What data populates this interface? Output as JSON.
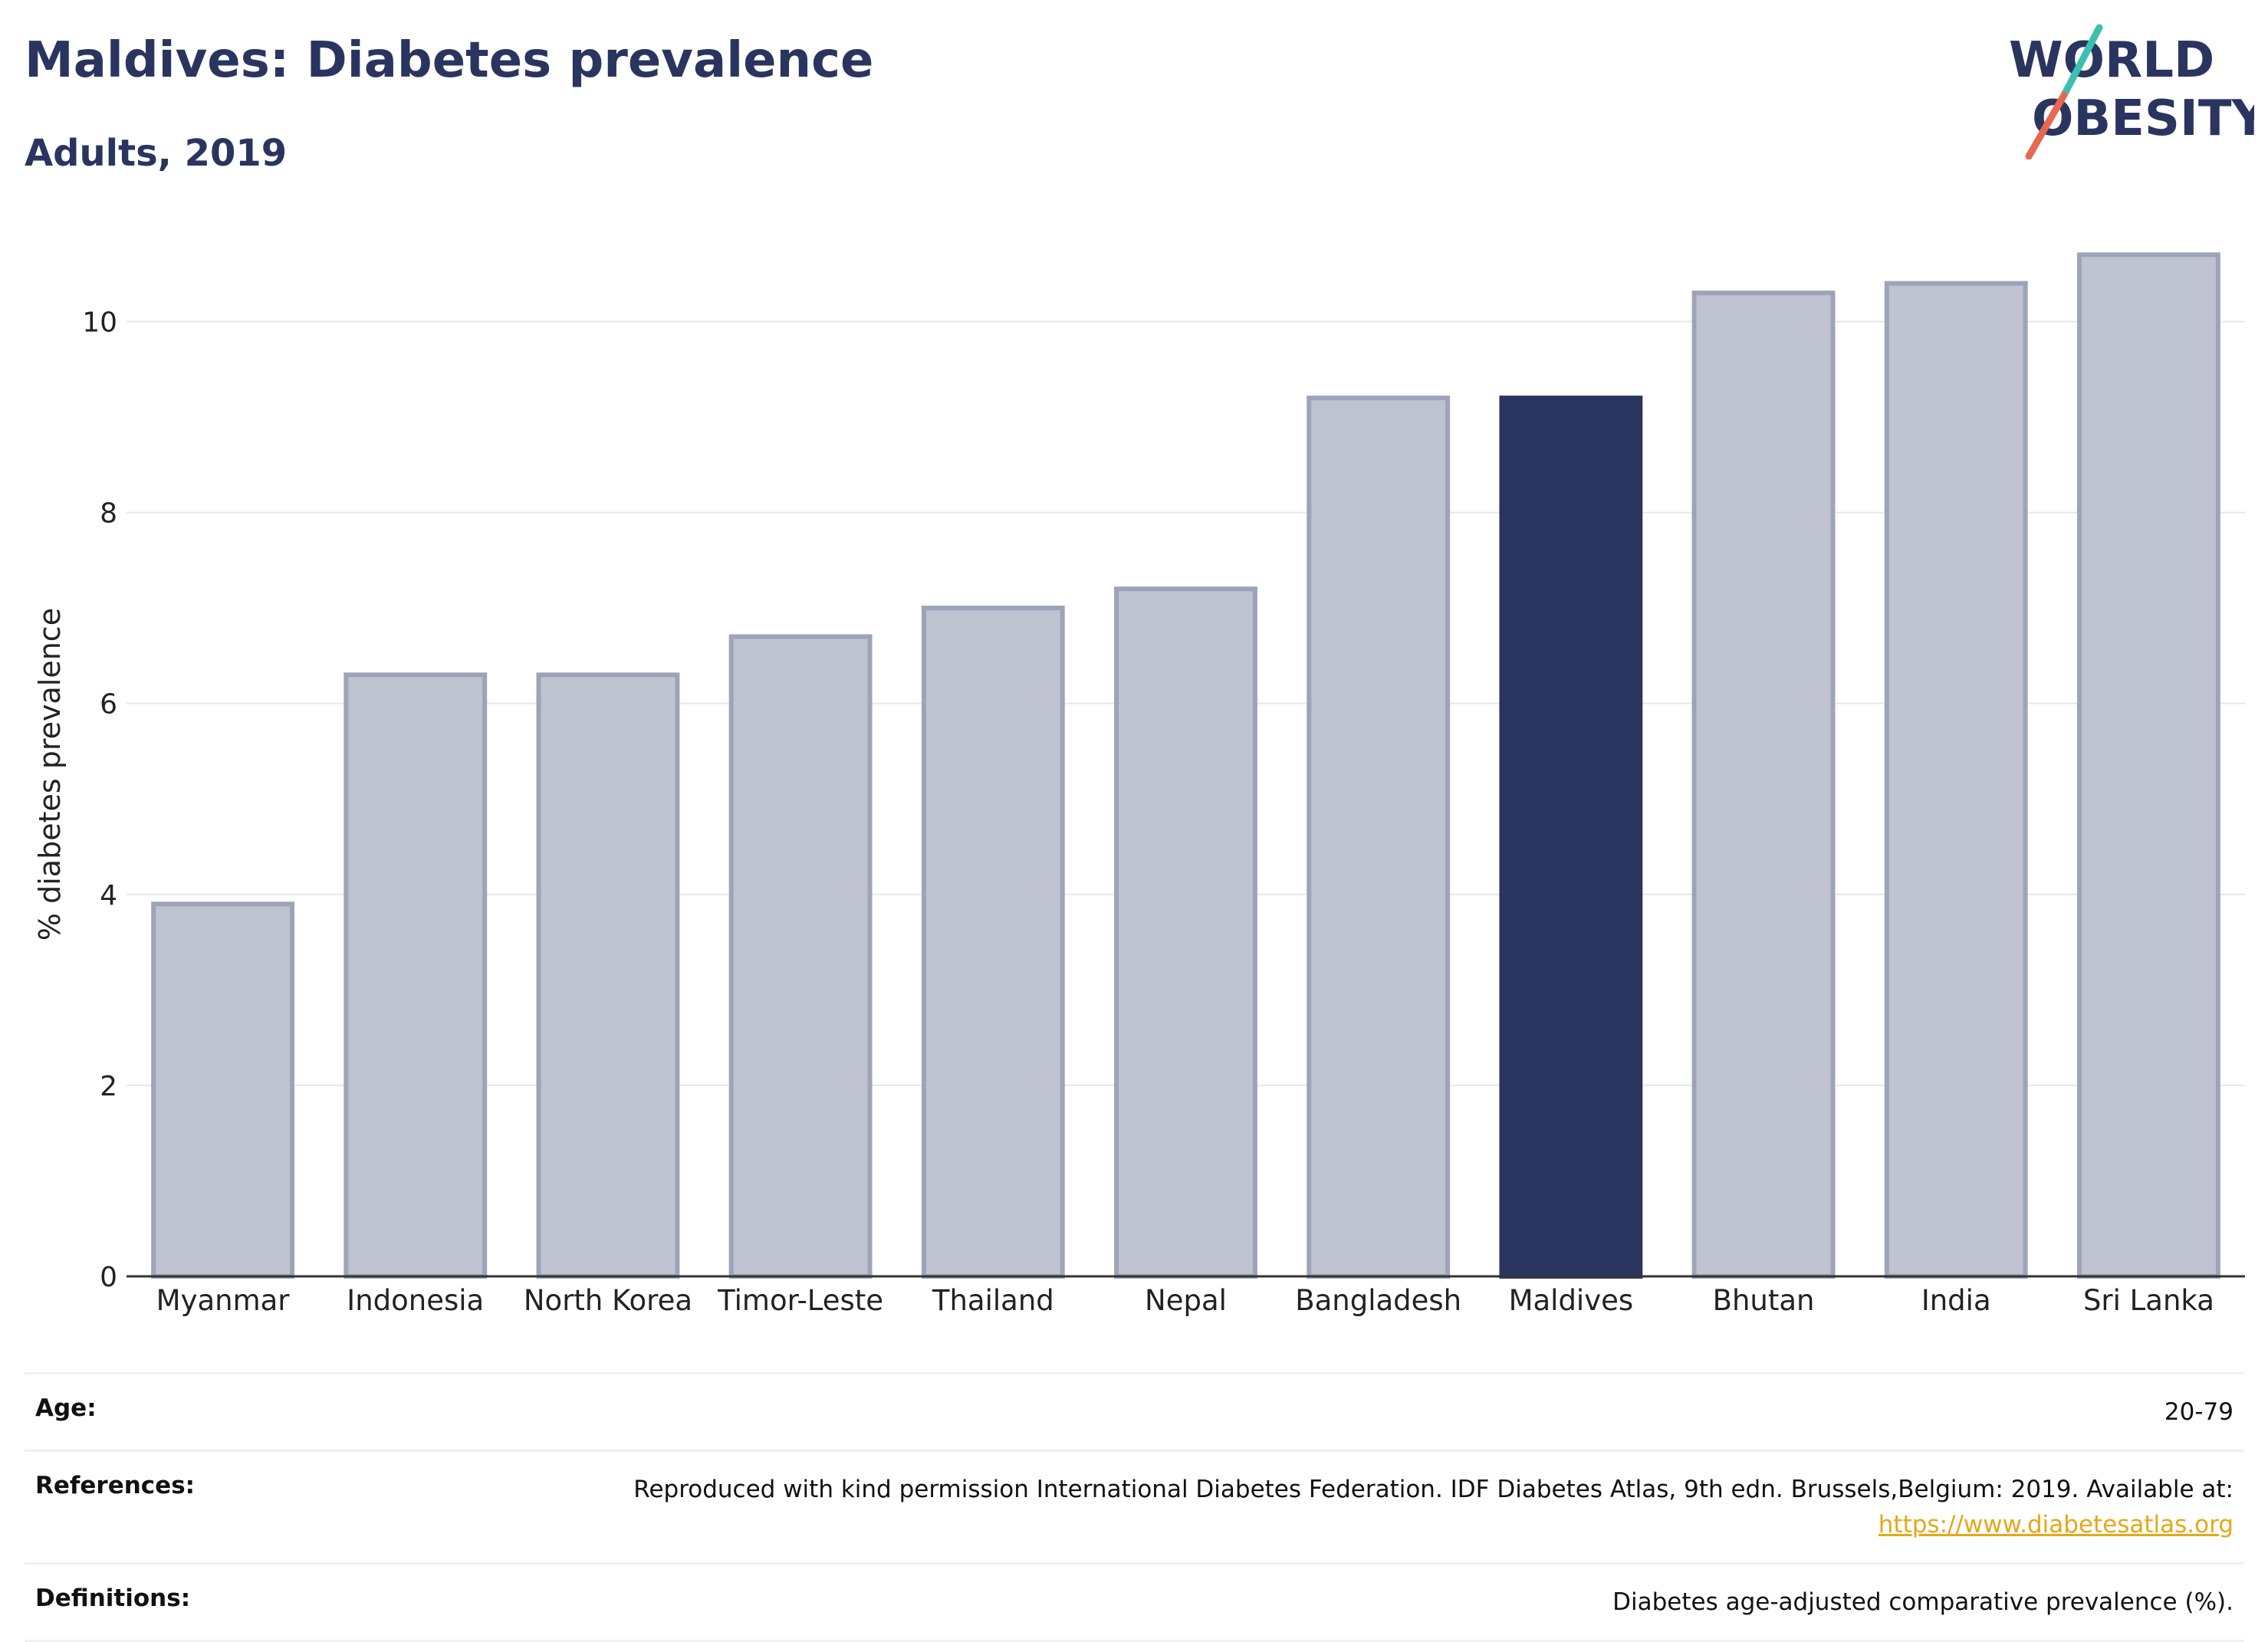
{
  "header": {
    "title": "Maldives: Diabetes prevalence",
    "subtitle": "Adults, 2019"
  },
  "logo": {
    "line1": "WORLD",
    "line2": "OBESITY",
    "colors": {
      "text": "#2a355f",
      "slash_top": "#3cbfae",
      "slash_bottom": "#e8684f"
    }
  },
  "chart_data": {
    "type": "bar",
    "categories": [
      "Myanmar",
      "Indonesia",
      "North Korea",
      "Timor-Leste",
      "Thailand",
      "Nepal",
      "Bangladesh",
      "Maldives",
      "Bhutan",
      "India",
      "Sri Lanka"
    ],
    "values": [
      3.9,
      6.3,
      6.3,
      6.7,
      7.0,
      7.2,
      9.2,
      9.2,
      10.3,
      10.4,
      10.7
    ],
    "highlight": "Maldives",
    "ylabel": "% diabetes prevalence",
    "xlabel": "",
    "ylim": [
      0,
      11.2
    ],
    "yticks": [
      0,
      2,
      4,
      6,
      8,
      10
    ],
    "grid": true,
    "colors": {
      "bar": "#bfc3d0",
      "bar_edge": "#9da3b8",
      "highlight": "#2a355f",
      "grid": "#e6e8ec",
      "axis": "#333333"
    }
  },
  "meta": {
    "age_label": "Age:",
    "age_value": "20-79",
    "references_label": "References:",
    "references_value": "Reproduced with kind permission International Diabetes Federation. IDF Diabetes Atlas, 9th edn. Brussels,Belgium: 2019. Available at:",
    "references_link": "https://www.diabetesatlas.org",
    "definitions_label": "Definitions:",
    "definitions_value": "Diabetes age-adjusted comparative prevalence (%)."
  }
}
